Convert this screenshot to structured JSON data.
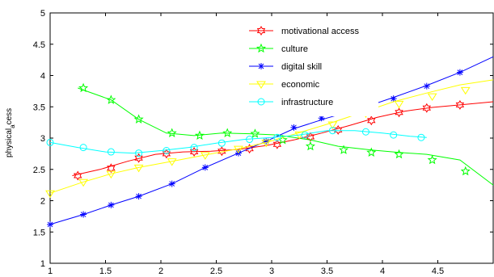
{
  "chart_data": {
    "type": "line",
    "title": "",
    "xlabel": "",
    "ylabel": "physical_access",
    "ylabel_main": "physical",
    "ylabel_sub": "a",
    "ylabel_tail": "cess",
    "xlim": [
      1,
      5
    ],
    "ylim": [
      1,
      5
    ],
    "x_ticks": [
      1,
      1.5,
      2,
      2.5,
      3,
      3.5,
      4,
      4.5
    ],
    "x_tick_labels": [
      "1",
      "1.5",
      "2",
      "2.5",
      "3",
      "3.5",
      "4",
      "4.5"
    ],
    "y_ticks": [
      1,
      1.5,
      2,
      2.5,
      3,
      3.5,
      4,
      4.5,
      5
    ],
    "y_tick_labels": [
      "1",
      "1.5",
      "2",
      "2.5",
      "3",
      "3.5",
      "4",
      "4.5",
      "5"
    ],
    "grid": false,
    "legend_position": "top-right",
    "series": [
      {
        "name": "motivational access",
        "color": "#ff0000",
        "marker": "hexagram",
        "line_x": [
          1.2,
          1.45,
          1.7,
          1.95,
          2.2,
          2.45,
          2.7,
          2.95,
          3.2,
          3.45,
          3.7,
          3.95,
          4.2,
          4.45,
          4.7,
          5.0
        ],
        "line_y": [
          2.4,
          2.5,
          2.63,
          2.74,
          2.78,
          2.79,
          2.82,
          2.88,
          2.97,
          3.08,
          3.2,
          3.33,
          3.43,
          3.49,
          3.53,
          3.58
        ],
        "marker_x": [
          1.25,
          1.55,
          1.8,
          2.05,
          2.3,
          2.55,
          2.8,
          3.05,
          3.35,
          3.6,
          3.9,
          4.15,
          4.4,
          4.7
        ],
        "marker_y": [
          2.4,
          2.52,
          2.68,
          2.75,
          2.78,
          2.79,
          2.83,
          2.9,
          3.02,
          3.13,
          3.28,
          3.41,
          3.48,
          3.53
        ]
      },
      {
        "name": "culture",
        "color": "#00ff00",
        "marker": "pentagram",
        "line_x": [
          1.25,
          1.55,
          1.8,
          2.05,
          2.3,
          2.55,
          2.8,
          3.05,
          3.35,
          3.6,
          3.9,
          4.15,
          4.4,
          4.7,
          5.0
        ],
        "line_y": [
          3.8,
          3.61,
          3.3,
          3.08,
          3.04,
          3.08,
          3.07,
          3.05,
          2.97,
          2.87,
          2.81,
          2.77,
          2.74,
          2.65,
          2.25
        ],
        "marker_x": [
          1.3,
          1.55,
          1.8,
          2.1,
          2.35,
          2.6,
          2.85,
          3.1,
          3.35,
          3.65,
          3.9,
          4.15,
          4.45,
          4.75
        ],
        "marker_y": [
          3.8,
          3.61,
          3.3,
          3.08,
          3.04,
          3.08,
          3.07,
          2.97,
          2.87,
          2.81,
          2.77,
          2.74,
          2.65,
          2.47
        ]
      },
      {
        "name": "digital skill",
        "color": "#0000ff",
        "marker": "asterisk",
        "line_x": [
          1.0,
          1.3,
          1.55,
          1.8,
          2.1,
          2.4,
          2.7,
          2.95,
          3.2,
          3.5,
          3.8,
          4.1,
          4.4,
          4.7,
          5.0
        ],
        "line_y": [
          1.62,
          1.78,
          1.93,
          2.07,
          2.27,
          2.53,
          2.76,
          2.95,
          3.15,
          3.32,
          3.47,
          3.65,
          3.84,
          4.05,
          4.3
        ],
        "marker_x": [
          1.0,
          1.3,
          1.55,
          1.8,
          2.1,
          2.4,
          2.7,
          2.95,
          3.2,
          3.45,
          3.75,
          4.1,
          4.4,
          4.7
        ],
        "marker_y": [
          1.62,
          1.78,
          1.93,
          2.07,
          2.27,
          2.53,
          2.76,
          2.95,
          3.17,
          3.32,
          3.47,
          3.63,
          3.83,
          4.05
        ]
      },
      {
        "name": "economic",
        "color": "#ffff00",
        "marker": "triangle-down",
        "line_x": [
          1.0,
          1.3,
          1.55,
          1.8,
          2.1,
          2.4,
          2.7,
          2.95,
          3.2,
          3.5,
          3.8,
          4.1,
          4.4,
          4.7,
          5.0
        ],
        "line_y": [
          2.12,
          2.3,
          2.43,
          2.53,
          2.63,
          2.73,
          2.83,
          2.93,
          3.06,
          3.22,
          3.4,
          3.58,
          3.72,
          3.85,
          3.93
        ],
        "marker_x": [
          1.0,
          1.3,
          1.55,
          1.8,
          2.1,
          2.4,
          2.7,
          2.95,
          3.25,
          3.55,
          3.85,
          4.15,
          4.45,
          4.75
        ],
        "marker_y": [
          2.12,
          2.3,
          2.43,
          2.53,
          2.63,
          2.73,
          2.83,
          2.93,
          3.06,
          3.22,
          3.4,
          3.55,
          3.67,
          3.77
        ]
      },
      {
        "name": "infrastructure",
        "color": "#00ffff",
        "marker": "circle",
        "line_x": [
          1.0,
          1.25,
          1.5,
          1.75,
          2.0,
          2.25,
          2.5,
          2.75,
          3.0,
          3.25,
          3.5,
          3.75,
          4.0,
          4.25,
          4.4
        ],
        "line_y": [
          2.93,
          2.85,
          2.78,
          2.76,
          2.8,
          2.85,
          2.92,
          2.98,
          3.01,
          3.05,
          3.12,
          3.12,
          3.08,
          3.03,
          3.01
        ],
        "marker_x": [
          1.0,
          1.3,
          1.55,
          1.8,
          2.05,
          2.3,
          2.55,
          2.8,
          3.05,
          3.3,
          3.55,
          3.85,
          4.1,
          4.35
        ],
        "marker_y": [
          2.93,
          2.85,
          2.78,
          2.76,
          2.8,
          2.85,
          2.92,
          2.98,
          3.01,
          3.05,
          3.12,
          3.1,
          3.05,
          3.01
        ]
      }
    ]
  }
}
